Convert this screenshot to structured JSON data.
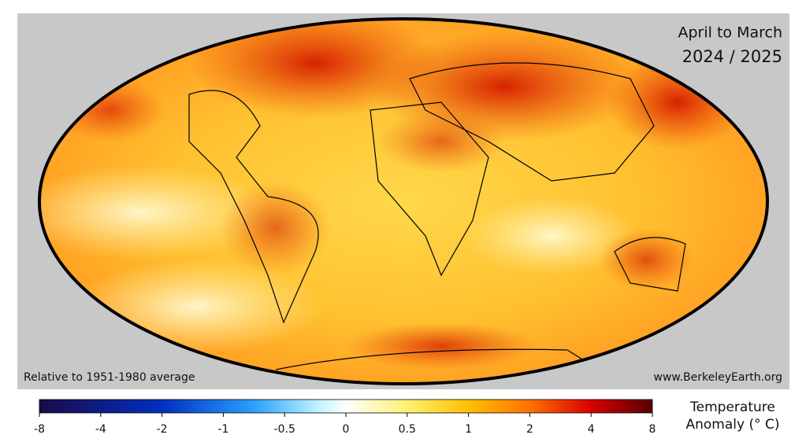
{
  "header": {
    "title": "April to March",
    "period": "2024 / 2025"
  },
  "footer": {
    "baseline_note": "Relative to 1951-1980 average",
    "source": "www.BerkeleyEarth.org"
  },
  "colorbar": {
    "label_line1": "Temperature",
    "label_line2": "Anomaly (° C)",
    "ticks": [
      -8,
      -4,
      -2,
      -1,
      -0.5,
      0,
      0.5,
      1,
      2,
      4,
      8
    ]
  }
}
